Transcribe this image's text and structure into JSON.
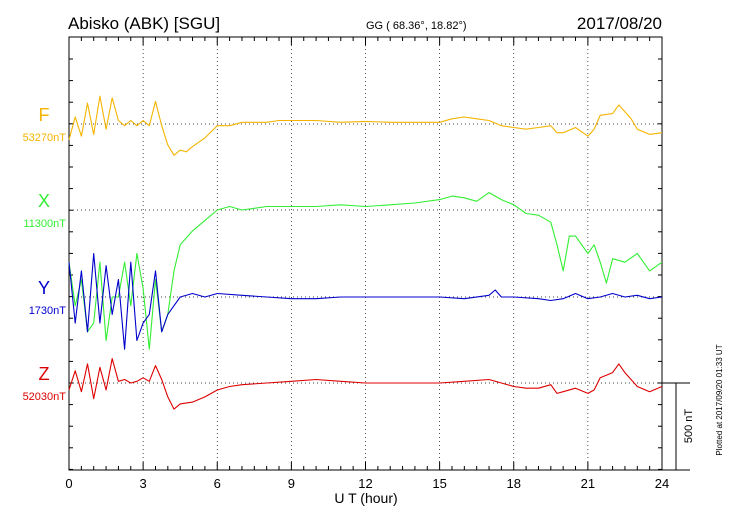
{
  "header": {
    "station": "Abisko (ABK)  [SGU]",
    "coords": "GG ( 68.36°,  18.82°)",
    "date": "2017/08/20"
  },
  "footer": {
    "plotted": "Plotted at 2017/09/20 01:33 UT"
  },
  "chart_data": {
    "type": "line",
    "title": "Abisko (ABK)  [SGU]",
    "xlabel": "U T (hour)",
    "ylabel": "",
    "xlim": [
      0,
      24
    ],
    "x_ticks": [
      0,
      3,
      6,
      9,
      12,
      15,
      18,
      21,
      24
    ],
    "x_tick_labels": [
      "0",
      "3",
      "6",
      "9",
      "12",
      "15",
      "18",
      "21",
      "24"
    ],
    "scale_bar": {
      "label": "500 nT",
      "value_nT": 500
    },
    "grid": true,
    "series": [
      {
        "name": "F",
        "baseline_label": "53270nT",
        "color": "#f4b400",
        "x": [
          0,
          0.25,
          0.5,
          0.75,
          1,
          1.25,
          1.5,
          1.75,
          2,
          2.25,
          2.5,
          2.75,
          3,
          3.25,
          3.5,
          3.75,
          4,
          4.25,
          4.5,
          4.75,
          5,
          5.5,
          6,
          6.5,
          7,
          7.5,
          8,
          8.5,
          9,
          10,
          11,
          12,
          13,
          14,
          15,
          15.5,
          16,
          16.5,
          17,
          17.5,
          18,
          18.5,
          19,
          19.5,
          19.75,
          20,
          20.5,
          21,
          21.25,
          21.5,
          22,
          22.25,
          22.5,
          22.75,
          23,
          23.5,
          24
        ],
        "y": [
          -90,
          40,
          -70,
          120,
          -60,
          160,
          -30,
          150,
          20,
          -10,
          20,
          -10,
          20,
          -10,
          130,
          -10,
          -120,
          -180,
          -150,
          -160,
          -130,
          -80,
          -10,
          -10,
          10,
          10,
          10,
          20,
          20,
          20,
          10,
          15,
          10,
          10,
          10,
          30,
          40,
          30,
          20,
          -10,
          -20,
          -30,
          -20,
          -10,
          -50,
          -50,
          -20,
          -70,
          -30,
          50,
          60,
          110,
          70,
          30,
          -30,
          -60,
          -50
        ]
      },
      {
        "name": "X",
        "baseline_label": "11300nT",
        "color": "#33ee33",
        "x": [
          0,
          0.25,
          0.5,
          0.75,
          1,
          1.25,
          1.5,
          1.75,
          2,
          2.25,
          2.5,
          2.75,
          3,
          3.25,
          3.5,
          3.75,
          4,
          4.25,
          4.5,
          5,
          5.5,
          6,
          6.5,
          7,
          7.5,
          8,
          9,
          10,
          11,
          12,
          13,
          14,
          15,
          15.5,
          16,
          16.5,
          17,
          17.5,
          18,
          18.5,
          19,
          19.5,
          19.75,
          20,
          20.25,
          20.5,
          21,
          21.25,
          21.5,
          21.75,
          22,
          22.5,
          23,
          23.5,
          24
        ],
        "y": [
          -300,
          -550,
          -400,
          -700,
          -650,
          -300,
          -750,
          -500,
          -500,
          -300,
          -550,
          -250,
          -450,
          -800,
          -400,
          -700,
          -600,
          -350,
          -200,
          -120,
          -60,
          0,
          20,
          0,
          10,
          20,
          20,
          20,
          30,
          20,
          30,
          40,
          60,
          80,
          70,
          50,
          100,
          60,
          30,
          -20,
          -30,
          -70,
          -200,
          -350,
          -150,
          -150,
          -250,
          -200,
          -300,
          -420,
          -280,
          -300,
          -250,
          -350,
          -300
        ]
      },
      {
        "name": "Y",
        "baseline_label": "1730nT",
        "color": "#0000cc",
        "x": [
          0,
          0.25,
          0.5,
          0.75,
          1,
          1.25,
          1.5,
          1.75,
          2,
          2.25,
          2.5,
          2.75,
          3,
          3.25,
          3.5,
          3.75,
          4,
          4.25,
          4.5,
          5,
          5.5,
          6,
          7,
          8,
          9,
          10,
          11,
          12,
          13,
          14,
          15,
          16,
          17,
          17.25,
          17.5,
          18,
          19,
          19.5,
          20,
          20.5,
          21,
          21.5,
          22,
          22.5,
          23,
          23.5,
          24
        ],
        "y": [
          200,
          -150,
          150,
          -200,
          250,
          -150,
          180,
          -100,
          100,
          -300,
          200,
          -250,
          -150,
          -100,
          150,
          -200,
          -100,
          -50,
          0,
          20,
          0,
          20,
          10,
          0,
          -10,
          -10,
          0,
          0,
          0,
          0,
          0,
          -10,
          10,
          40,
          0,
          0,
          -10,
          -20,
          -10,
          20,
          -10,
          0,
          20,
          0,
          10,
          -10,
          0
        ]
      },
      {
        "name": "Z",
        "baseline_label": "52030nT",
        "color": "#dd0000",
        "x": [
          0,
          0.25,
          0.5,
          0.75,
          1,
          1.25,
          1.5,
          1.75,
          2,
          2.25,
          2.5,
          2.75,
          3,
          3.25,
          3.5,
          3.75,
          4,
          4.25,
          4.5,
          5,
          5.5,
          6,
          6.5,
          7,
          8,
          9,
          10,
          11,
          12,
          13,
          14,
          15,
          16,
          17,
          17.5,
          18,
          18.5,
          19,
          19.5,
          19.75,
          20,
          20.5,
          21,
          21.25,
          21.5,
          22,
          22.25,
          22.5,
          23,
          23.5,
          24
        ],
        "y": [
          -40,
          70,
          -50,
          110,
          -90,
          90,
          -40,
          140,
          10,
          20,
          0,
          10,
          30,
          10,
          100,
          20,
          -80,
          -150,
          -120,
          -110,
          -80,
          -40,
          -20,
          -10,
          0,
          10,
          20,
          10,
          0,
          0,
          0,
          0,
          10,
          20,
          0,
          -20,
          -30,
          -30,
          -10,
          -60,
          -50,
          -30,
          -60,
          -40,
          30,
          60,
          110,
          60,
          -20,
          -50,
          -20
        ]
      }
    ]
  }
}
